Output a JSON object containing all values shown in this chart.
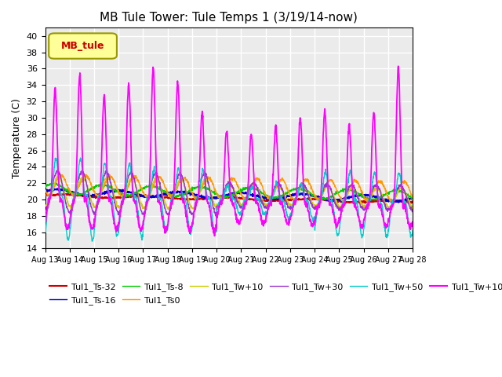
{
  "title": "MB Tule Tower: Tule Temps 1 (3/19/14-now)",
  "ylabel": "Temperature (C)",
  "xlim_days": [
    0,
    15
  ],
  "ylim": [
    14,
    41
  ],
  "yticks": [
    14,
    16,
    18,
    20,
    22,
    24,
    26,
    28,
    30,
    32,
    34,
    36,
    38,
    40
  ],
  "x_labels": [
    "Aug 13",
    "Aug 14",
    "Aug 15",
    "Aug 16",
    "Aug 17",
    "Aug 18",
    "Aug 19",
    "Aug 20",
    "Aug 21",
    "Aug 22",
    "Aug 23",
    "Aug 24",
    "Aug 25",
    "Aug 26",
    "Aug 27",
    "Aug 28"
  ],
  "series_colors": {
    "Tul1_Ts-32": "#cc0000",
    "Tul1_Ts-16": "#0000cc",
    "Tul1_Ts-8": "#00cc00",
    "Tul1_Ts0": "#ff9900",
    "Tul1_Tw+10": "#cccc00",
    "Tul1_Tw+30": "#9933cc",
    "Tul1_Tw+50": "#00cccc",
    "Tul1_Tw+100": "#ff00ff"
  },
  "legend_box_facecolor": "#ffff99",
  "legend_box_edgecolor": "#999900",
  "legend_box_text": "MB_tule",
  "legend_box_text_color": "#cc0000",
  "plot_bg_color": "#ebebeb",
  "grid_color": "#ffffff",
  "title_fontsize": 11,
  "ylabel_fontsize": 9,
  "tick_fontsize": 8,
  "xtick_fontsize": 7,
  "legend_fontsize": 8
}
